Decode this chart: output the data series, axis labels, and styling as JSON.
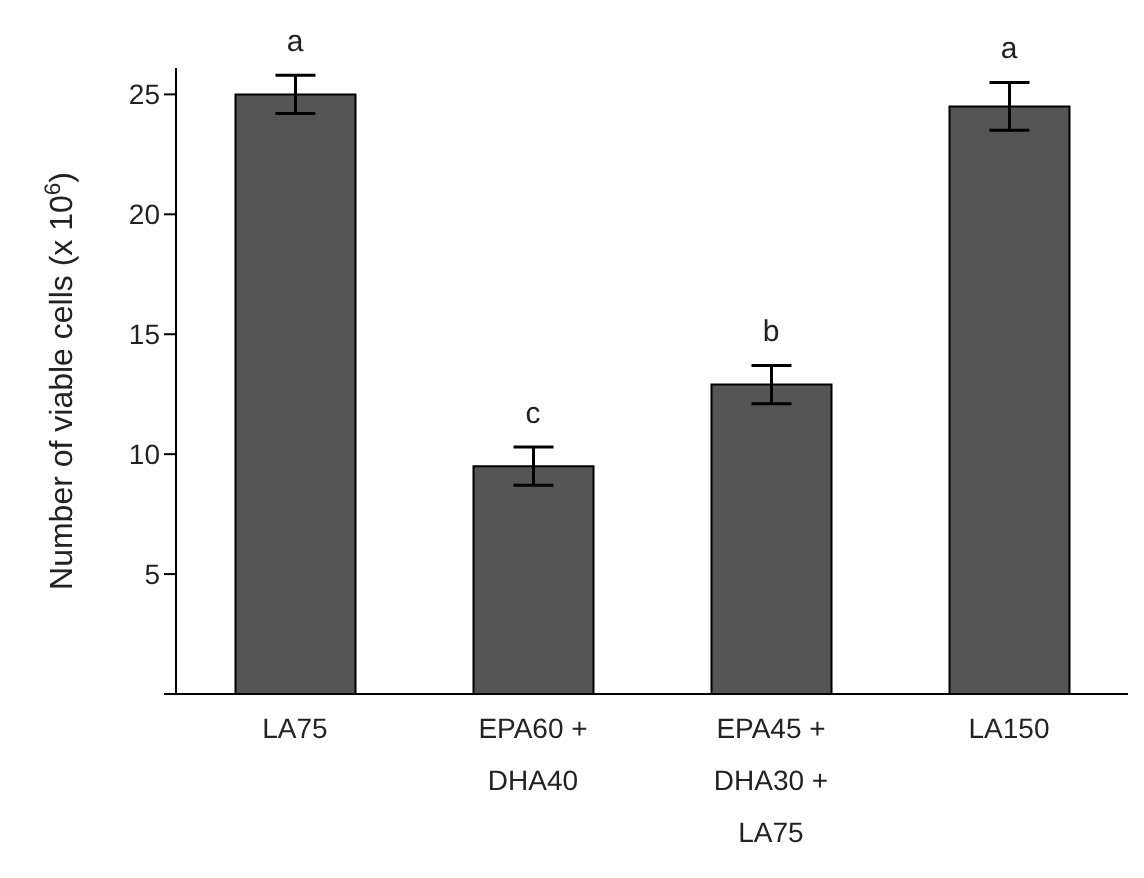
{
  "chart_data": {
    "type": "bar",
    "ylabel": "Number of viable cells (x 10$^{6}$)",
    "categories": [
      "LA75",
      "EPA60 + DHA40",
      "EPA45 + DHA30 + LA75",
      "LA150"
    ],
    "values": [
      25.0,
      9.5,
      12.9,
      24.5
    ],
    "errors": [
      0.8,
      0.8,
      0.8,
      1.0
    ],
    "color": "#555555",
    "ylim": [
      0,
      26.1
    ],
    "yticks": [
      {
        "value": 0,
        "label": null
      },
      5,
      10,
      15,
      20,
      25
    ],
    "grid": false,
    "annotations": [
      {
        "text": "a",
        "x": "LA75",
        "y": 25.8
      },
      {
        "text": "c",
        "x": "EPA60 + DHA40",
        "y": 10.3
      },
      {
        "text": "b",
        "x": "EPA45 + DHA30 + LA75",
        "y": 13.7
      },
      {
        "text": "a",
        "x": "LA150",
        "y": 25.5
      }
    ]
  }
}
